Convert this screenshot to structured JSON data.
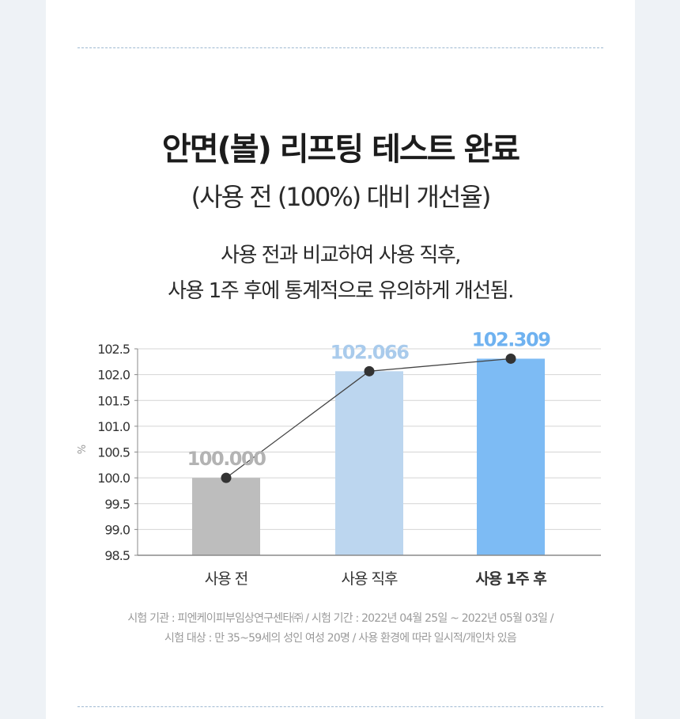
{
  "heading": {
    "title": "안면(볼) 리프팅 테스트 완료",
    "subtitle": "(사용 전 (100%) 대비 개선율)",
    "desc_line1": "사용 전과 비교하여 사용 직후,",
    "desc_line2": "사용 1주 후에 통계적으로 유의하게 개선됨."
  },
  "chart_data": {
    "type": "bar",
    "categories": [
      "사용 전",
      "사용 직후",
      "사용 1주 후"
    ],
    "values": [
      100.0,
      102.066,
      102.309
    ],
    "value_labels": [
      "100.000",
      "102.066",
      "102.309"
    ],
    "ylabel": "%",
    "ylim": [
      98.5,
      102.5
    ],
    "yticks": [
      "102.5",
      "102.0",
      "101.5",
      "101.0",
      "100.5",
      "100.0",
      "99.5",
      "99.0",
      "98.5"
    ],
    "grid": true,
    "overlay_line": true,
    "colors": {
      "bars": [
        "#bdbdbd",
        "#bcd6ef",
        "#7dbbf4"
      ],
      "value_labels": [
        "#b3b3b3",
        "#a9cbec",
        "#6fb2f0"
      ],
      "line": "#444444",
      "point": "#333333",
      "grid": "#d4d4d4",
      "axis": "#8a8a8a"
    },
    "highlight_category": 2
  },
  "footnote": {
    "line1": "시험 기관 : 피엔케이피부임상연구센타㈜ / 시험 기간 : 2022년 04월 25일 ~ 2022년 05월 03일 /",
    "line2": "시험 대상 : 만 35~59세의 성인 여성 20명 / 사용 환경에 따라 일시적/개인차 있음"
  }
}
